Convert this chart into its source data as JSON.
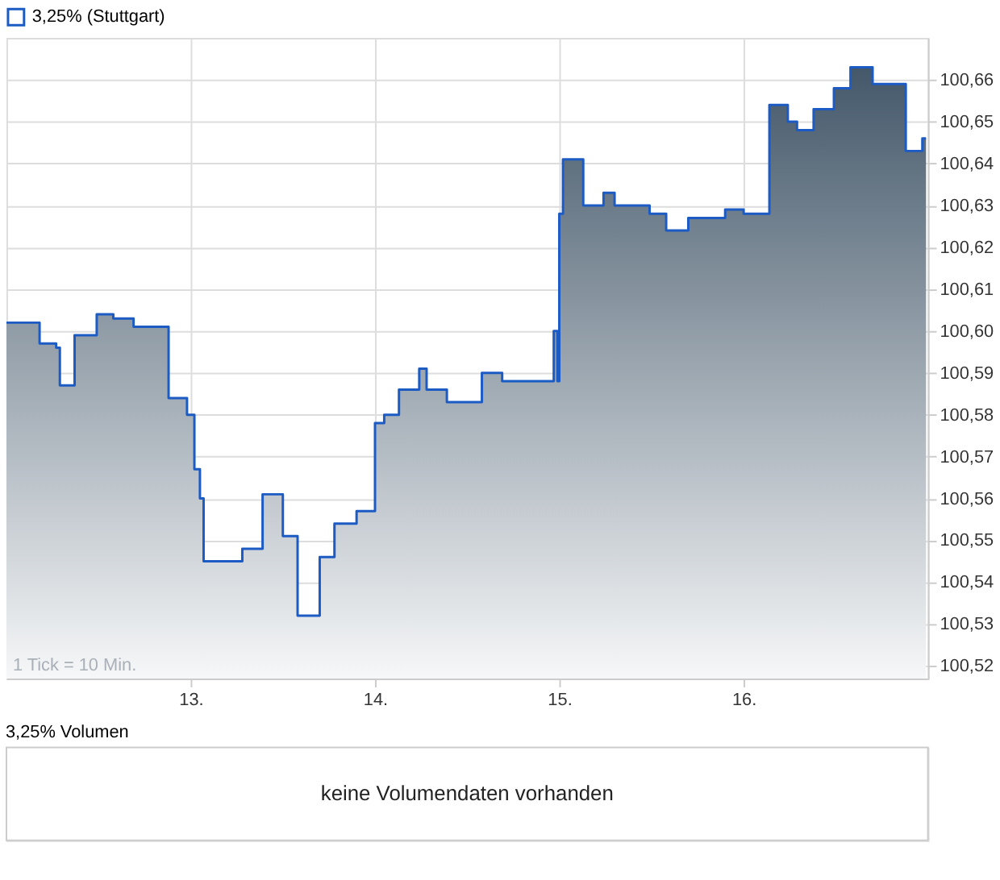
{
  "chart_data": [
    {
      "type": "area",
      "x": [
        12.0,
        12.18,
        12.18,
        12.27,
        12.27,
        12.29,
        12.29,
        12.37,
        12.37,
        12.49,
        12.49,
        12.58,
        12.58,
        12.69,
        12.69,
        12.88,
        12.88,
        12.98,
        12.98,
        13.02,
        13.02,
        13.05,
        13.05,
        13.07,
        13.07,
        13.28,
        13.28,
        13.39,
        13.39,
        13.5,
        13.5,
        13.58,
        13.58,
        13.7,
        13.7,
        13.78,
        13.78,
        13.9,
        13.9,
        14.0,
        14.0,
        14.05,
        14.05,
        14.13,
        14.13,
        14.24,
        14.24,
        14.28,
        14.28,
        14.39,
        14.39,
        14.58,
        14.58,
        14.69,
        14.69,
        14.97,
        14.97,
        14.99,
        14.99,
        15.0,
        15.0,
        15.02,
        15.02,
        15.13,
        15.13,
        15.24,
        15.24,
        15.3,
        15.3,
        15.49,
        15.49,
        15.58,
        15.58,
        15.7,
        15.7,
        15.9,
        15.9,
        16.0,
        16.0,
        16.14,
        16.14,
        16.24,
        16.24,
        16.29,
        16.29,
        16.38,
        16.38,
        16.49,
        16.49,
        16.58,
        16.58,
        16.7,
        16.7,
        16.88,
        16.88,
        16.97,
        16.97,
        16.99
      ],
      "series": [
        {
          "name": "3,25% (Stuttgart)",
          "color": "#1c5bc4",
          "values": [
            100.602,
            100.602,
            100.597,
            100.597,
            100.596,
            100.596,
            100.587,
            100.587,
            100.599,
            100.599,
            100.604,
            100.604,
            100.603,
            100.603,
            100.601,
            100.601,
            100.584,
            100.584,
            100.58,
            100.58,
            100.567,
            100.567,
            100.56,
            100.56,
            100.545,
            100.545,
            100.548,
            100.548,
            100.561,
            100.561,
            100.551,
            100.551,
            100.532,
            100.532,
            100.546,
            100.546,
            100.554,
            100.554,
            100.557,
            100.557,
            100.578,
            100.578,
            100.58,
            100.58,
            100.586,
            100.586,
            100.591,
            100.591,
            100.586,
            100.586,
            100.583,
            100.583,
            100.59,
            100.59,
            100.588,
            100.588,
            100.6,
            100.6,
            100.588,
            100.588,
            100.628,
            100.628,
            100.641,
            100.641,
            100.63,
            100.63,
            100.633,
            100.633,
            100.63,
            100.63,
            100.628,
            100.628,
            100.624,
            100.624,
            100.627,
            100.627,
            100.629,
            100.629,
            100.628,
            100.628,
            100.654,
            100.654,
            100.65,
            100.65,
            100.648,
            100.648,
            100.653,
            100.653,
            100.658,
            100.658,
            100.663,
            100.663,
            100.659,
            100.659,
            100.643,
            100.643,
            100.646,
            100.646
          ]
        }
      ],
      "xlim": [
        12.0,
        17.0
      ],
      "xticks": [
        {
          "value": 13,
          "label": "13."
        },
        {
          "value": 14,
          "label": "14."
        },
        {
          "value": 15,
          "label": "15."
        },
        {
          "value": 16,
          "label": "16."
        }
      ],
      "ylim": [
        100.517,
        100.67
      ],
      "yticks": [
        {
          "value": 100.52,
          "label": "100,52"
        },
        {
          "value": 100.53,
          "label": "100,53"
        },
        {
          "value": 100.54,
          "label": "100,54"
        },
        {
          "value": 100.55,
          "label": "100,55"
        },
        {
          "value": 100.56,
          "label": "100,56"
        },
        {
          "value": 100.57,
          "label": "100,57"
        },
        {
          "value": 100.58,
          "label": "100,58"
        },
        {
          "value": 100.59,
          "label": "100,59"
        },
        {
          "value": 100.6,
          "label": "100,60"
        },
        {
          "value": 100.61,
          "label": "100,61"
        },
        {
          "value": 100.62,
          "label": "100,62"
        },
        {
          "value": 100.63,
          "label": "100,63"
        },
        {
          "value": 100.64,
          "label": "100,64"
        },
        {
          "value": 100.65,
          "label": "100,65"
        },
        {
          "value": 100.66,
          "label": "100,66"
        }
      ],
      "grid": true,
      "legend": "top left",
      "annotations": [
        "1 Tick = 10 Min."
      ]
    },
    {
      "type": "other",
      "title": "3,25% Volumen",
      "annotations": [
        "keine Volumendaten vorhanden"
      ]
    }
  ]
}
